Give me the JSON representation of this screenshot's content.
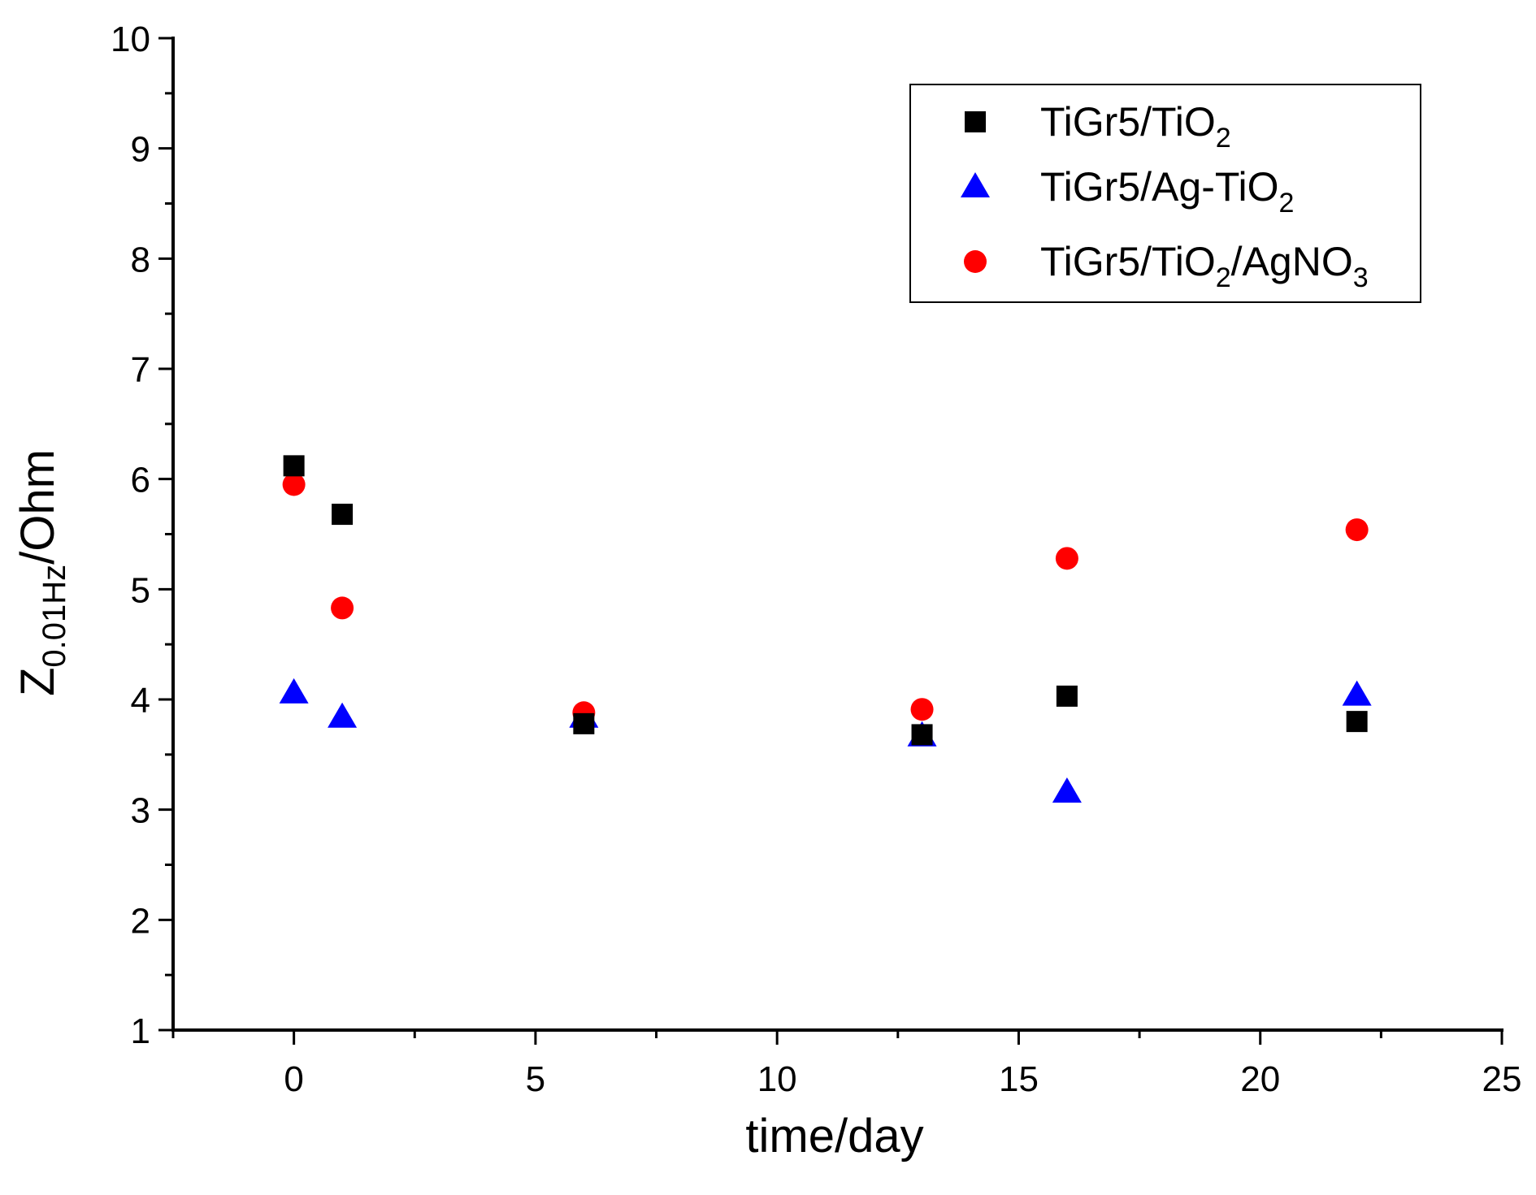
{
  "chart_data": {
    "type": "scatter",
    "title": "",
    "xlabel": "time/day",
    "ylabel": {
      "main": "Z",
      "sub": "0.01Hz",
      "rest": "/Ohm"
    },
    "xlim": [
      -2.5,
      25
    ],
    "ylim": [
      1,
      10
    ],
    "xticks": [
      0,
      5,
      10,
      15,
      20,
      25
    ],
    "xticks_minor": [
      -2.5,
      2.5,
      7.5,
      12.5,
      17.5,
      22.5
    ],
    "yticks": [
      1,
      2,
      3,
      4,
      5,
      6,
      7,
      8,
      9,
      10
    ],
    "yticks_minor": [
      1.5,
      2.5,
      3.5,
      4.5,
      5.5,
      6.5,
      7.5,
      8.5,
      9.5
    ],
    "grid": false,
    "legend_position": "top-right",
    "series": [
      {
        "name": "TiGr5/TiO2",
        "label_parts": [
          [
            "TiGr5/TiO",
            false
          ],
          [
            "2",
            true
          ]
        ],
        "marker": "square",
        "color": "#000000",
        "x": [
          0,
          1,
          6,
          13,
          16,
          22
        ],
        "y": [
          6.12,
          5.68,
          3.78,
          3.68,
          4.03,
          3.8
        ]
      },
      {
        "name": "TiGr5/Ag-TiO2",
        "label_parts": [
          [
            "TiGr5/Ag-TiO",
            false
          ],
          [
            "2",
            true
          ]
        ],
        "marker": "triangle",
        "color": "#0000ff",
        "x": [
          0,
          1,
          6,
          13,
          16,
          22
        ],
        "y": [
          4.06,
          3.84,
          3.84,
          3.67,
          3.16,
          4.04
        ]
      },
      {
        "name": "TiGr5/TiO2/AgNO3",
        "label_parts": [
          [
            "TiGr5/TiO",
            false
          ],
          [
            "2",
            true
          ],
          [
            "/AgNO",
            false
          ],
          [
            "3",
            true
          ]
        ],
        "marker": "circle",
        "color": "#ff0000",
        "x": [
          0,
          1,
          6,
          13,
          16,
          22
        ],
        "y": [
          5.95,
          4.83,
          3.88,
          3.91,
          5.28,
          5.54
        ]
      }
    ]
  }
}
